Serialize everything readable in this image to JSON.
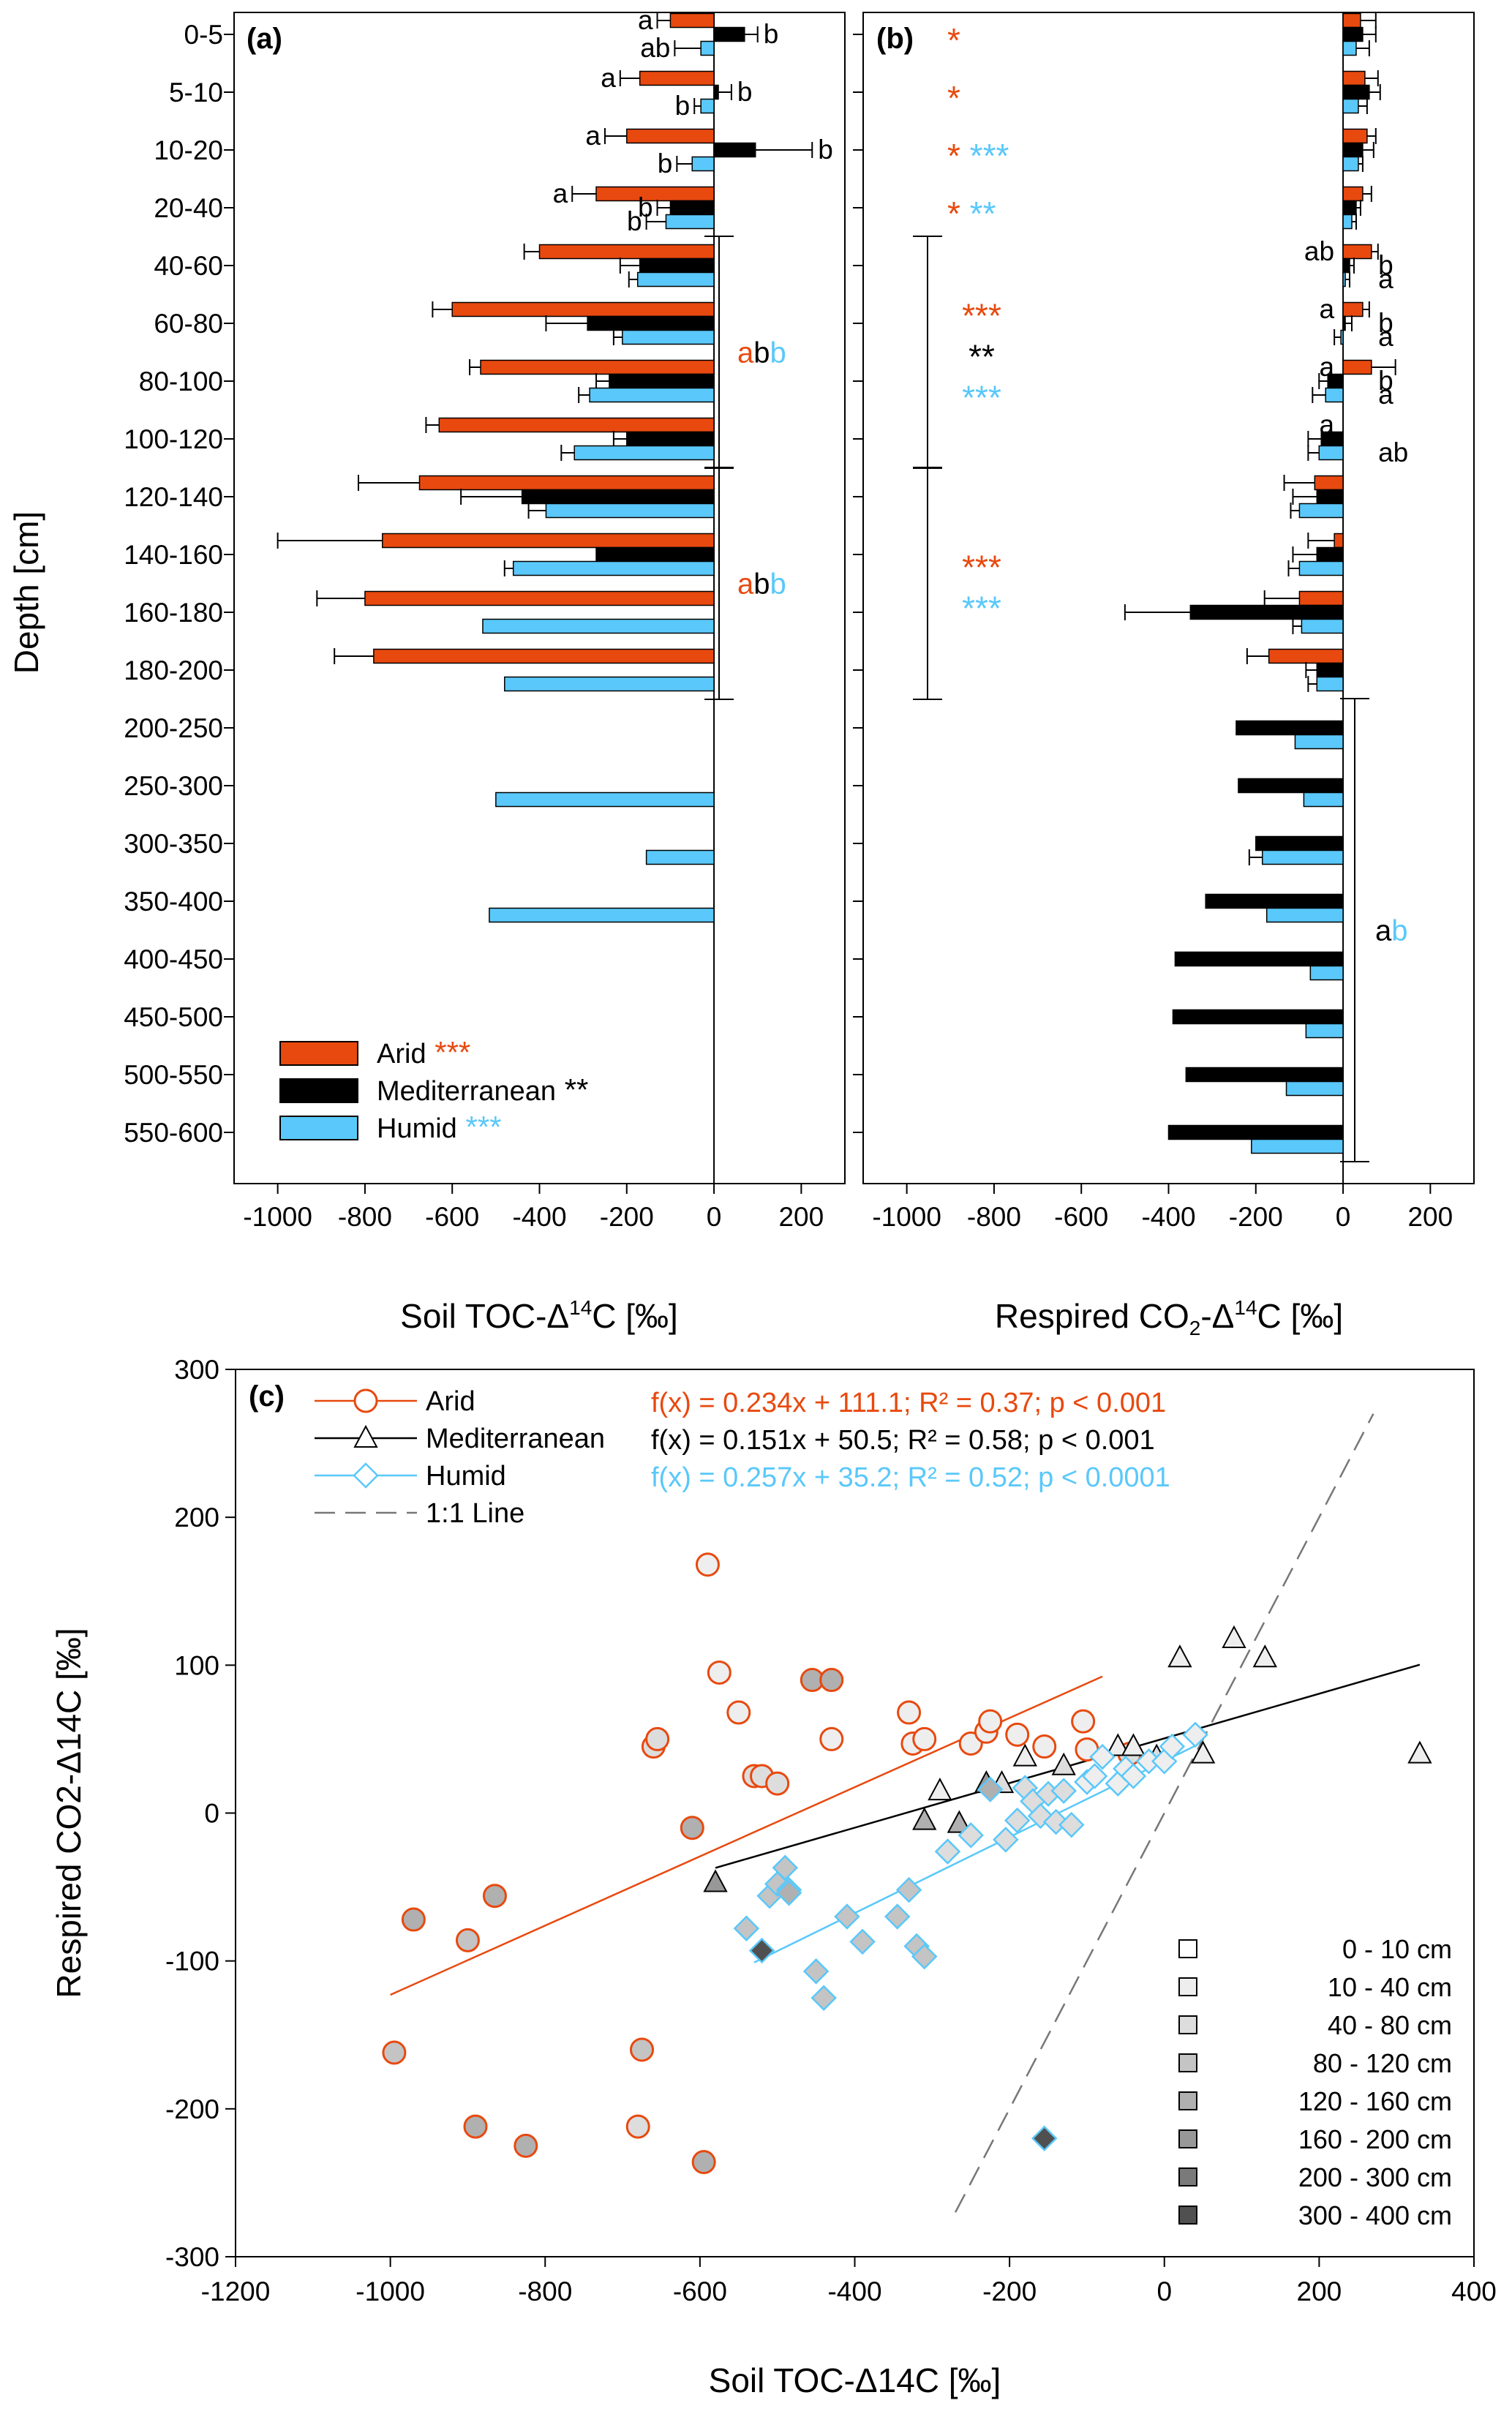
{
  "colors": {
    "arid": "#e8490f",
    "mediterranean": "#000000",
    "humid": "#5ac8fa",
    "axis": "#000000",
    "refline": "#777777"
  },
  "panel_a": {
    "tag": "(a)",
    "xlabel_main": "Soil TOC-Δ",
    "xlabel_sup": "14",
    "xlabel_end": "C [‰]",
    "ylabel": "Depth [cm]",
    "legend": [
      {
        "name": "Arid",
        "sig": "***",
        "color": "#e8490f"
      },
      {
        "name": "Mediterranean",
        "sig": "**",
        "color": "#000000"
      },
      {
        "name": "Humid",
        "sig": "***",
        "color": "#5ac8fa"
      }
    ],
    "letters": [
      {
        "row": 0,
        "text": "a",
        "series": "arid"
      },
      {
        "row": 0,
        "text": "b",
        "series": "mediterranean"
      },
      {
        "row": 0,
        "text": "ab",
        "series": "humid"
      },
      {
        "row": 1,
        "text": "a",
        "series": "arid"
      },
      {
        "row": 1,
        "text": "b",
        "series": "mediterranean"
      },
      {
        "row": 1,
        "text": "b",
        "series": "humid"
      },
      {
        "row": 2,
        "text": "a",
        "series": "arid"
      },
      {
        "row": 2,
        "text": "b",
        "series": "mediterranean"
      },
      {
        "row": 2,
        "text": "b",
        "series": "humid"
      },
      {
        "row": 3,
        "text": "a",
        "series": "arid"
      },
      {
        "row": 3,
        "text": "b",
        "series": "mediterranean"
      },
      {
        "row": 3,
        "text": "b",
        "series": "humid"
      }
    ],
    "groups": [
      {
        "from_row": 4,
        "to_row": 7,
        "letters": [
          {
            "t": "a",
            "c": "#e8490f"
          },
          {
            "t": "b",
            "c": "#000000"
          },
          {
            "t": "b",
            "c": "#5ac8fa"
          }
        ]
      },
      {
        "from_row": 8,
        "to_row": 11,
        "letters": [
          {
            "t": "a",
            "c": "#e8490f"
          },
          {
            "t": "b",
            "c": "#000000"
          },
          {
            "t": "b",
            "c": "#5ac8fa"
          }
        ]
      }
    ]
  },
  "panel_b": {
    "tag": "(b)",
    "xlabel_main": "Respired CO",
    "xlabel_sub": "2",
    "xlabel_mid": "-Δ",
    "xlabel_sup": "14",
    "xlabel_end": "C [‰]",
    "stars": [
      {
        "row": 0,
        "items": [
          {
            "t": "*",
            "c": "#e8490f"
          }
        ]
      },
      {
        "row": 1,
        "items": [
          {
            "t": "*",
            "c": "#e8490f"
          }
        ]
      },
      {
        "row": 2,
        "items": [
          {
            "t": "*",
            "c": "#e8490f"
          },
          {
            "t": "***",
            "c": "#5ac8fa"
          }
        ]
      },
      {
        "row": 3,
        "items": [
          {
            "t": "*",
            "c": "#e8490f"
          },
          {
            "t": "**",
            "c": "#5ac8fa"
          }
        ]
      }
    ],
    "group_stars": [
      {
        "from_row": 4,
        "to_row": 7,
        "lines": [
          {
            "t": "***",
            "c": "#e8490f"
          },
          {
            "t": "**",
            "c": "#000000"
          },
          {
            "t": "***",
            "c": "#5ac8fa"
          }
        ]
      },
      {
        "from_row": 8,
        "to_row": 11,
        "lines": [
          {
            "t": "***",
            "c": "#e8490f"
          },
          {
            "t": "***",
            "c": "#5ac8fa"
          }
        ]
      }
    ],
    "letters": [
      {
        "row": 4,
        "text": "ab",
        "series": "arid",
        "side": "left"
      },
      {
        "row": 4,
        "text": "b",
        "series": "mediterranean",
        "side": "right"
      },
      {
        "row": 4,
        "text": "a",
        "series": "humid",
        "side": "right"
      },
      {
        "row": 5,
        "text": "a",
        "series": "arid",
        "side": "left"
      },
      {
        "row": 5,
        "text": "b",
        "series": "mediterranean",
        "side": "right"
      },
      {
        "row": 5,
        "text": "a",
        "series": "humid",
        "side": "right"
      },
      {
        "row": 6,
        "text": "a",
        "series": "arid",
        "side": "left"
      },
      {
        "row": 6,
        "text": "b",
        "series": "mediterranean",
        "side": "right"
      },
      {
        "row": 6,
        "text": "a",
        "series": "humid",
        "side": "right"
      },
      {
        "row": 7,
        "text": "a",
        "series": "arid",
        "side": "left"
      },
      {
        "row": 7,
        "text": "ab",
        "series": "humid",
        "side": "right"
      }
    ],
    "group": {
      "from_row": 12,
      "to_row": 19,
      "letters": [
        {
          "t": "a",
          "c": "#000000"
        },
        {
          "t": "b",
          "c": "#5ac8fa"
        }
      ]
    }
  },
  "panel_c": {
    "tag": "(c)",
    "xlabel": "Soil TOC-Δ14C [‰]",
    "ylabel": "Respired CO2-Δ14C [‰]",
    "equations": [
      {
        "text": "f(x) = 0.234x + 111.1; R² = 0.37; p < 0.001",
        "color": "#e8490f"
      },
      {
        "text": "f(x) = 0.151x + 50.5;   R² = 0.58; p < 0.001",
        "color": "#000000"
      },
      {
        "text": "f(x) = 0.257x + 35.2;   R² = 0.52; p < 0.0001",
        "color": "#5ac8fa"
      }
    ],
    "legend": [
      {
        "name": "Arid",
        "marker": "circle",
        "color": "#e8490f"
      },
      {
        "name": "Mediterranean",
        "marker": "triangle",
        "color": "#000000"
      },
      {
        "name": "Humid",
        "marker": "diamond",
        "color": "#5ac8fa"
      },
      {
        "name": "1:1 Line",
        "marker": "dash",
        "color": "#777777"
      }
    ],
    "depth_legend": [
      {
        "label": "0 -   10 cm",
        "fill": "#ffffff"
      },
      {
        "label": "10 -   40 cm",
        "fill": "#eeeeee"
      },
      {
        "label": "40 -   80 cm",
        "fill": "#dddddd"
      },
      {
        "label": "80 - 120 cm",
        "fill": "#c4c4c4"
      },
      {
        "label": "120 - 160 cm",
        "fill": "#b0b0b0"
      },
      {
        "label": "160 - 200 cm",
        "fill": "#989898"
      },
      {
        "label": "200 - 300 cm",
        "fill": "#7a7a7a"
      },
      {
        "label": "300 - 400 cm",
        "fill": "#505050"
      }
    ]
  },
  "chart_data": [
    {
      "type": "bar",
      "orientation": "horizontal",
      "categories": [
        "0-5",
        "5-10",
        "10-20",
        "20-40",
        "40-60",
        "60-80",
        "80-100",
        "100-120",
        "120-140",
        "140-160",
        "160-180",
        "180-200",
        "200-250",
        "250-300",
        "300-350",
        "350-400",
        "400-450",
        "450-500",
        "500-550",
        "550-600"
      ],
      "xlabel": "Soil TOC-Δ14C [‰]",
      "ylabel": "Depth [cm]",
      "xlim": [
        -1100,
        300
      ],
      "xticks": [
        -1000,
        -800,
        -600,
        -400,
        -200,
        0,
        200
      ],
      "series": [
        {
          "name": "Arid",
          "values": [
            -100,
            -170,
            -200,
            -270,
            -400,
            -600,
            -535,
            -630,
            -675,
            -760,
            -800,
            -780,
            null,
            null,
            null,
            null,
            null,
            null,
            null,
            null
          ],
          "errors": [
            30,
            45,
            50,
            55,
            35,
            45,
            25,
            30,
            140,
            240,
            110,
            90,
            null,
            null,
            null,
            null,
            null,
            null,
            null,
            null
          ]
        },
        {
          "name": "Mediterranean",
          "values": [
            70,
            10,
            95,
            -100,
            -170,
            -290,
            -240,
            -200,
            -440,
            -270,
            null,
            null,
            null,
            null,
            null,
            null,
            null,
            null,
            null,
            null
          ],
          "errors": [
            30,
            30,
            130,
            30,
            45,
            95,
            30,
            30,
            140,
            0,
            null,
            null,
            null,
            null,
            null,
            null,
            null,
            null,
            null,
            null
          ]
        },
        {
          "name": "Humid",
          "values": [
            -30,
            -30,
            -50,
            -110,
            -175,
            -210,
            -285,
            -320,
            -385,
            -460,
            -530,
            -480,
            null,
            -500,
            -155,
            -515,
            null,
            null,
            null,
            null
          ],
          "errors": [
            60,
            15,
            35,
            45,
            20,
            20,
            25,
            30,
            40,
            20,
            0,
            0,
            null,
            0,
            0,
            0,
            null,
            null,
            null,
            null
          ]
        }
      ]
    },
    {
      "type": "bar",
      "orientation": "horizontal",
      "categories": [
        "0-5",
        "5-10",
        "10-20",
        "20-40",
        "40-60",
        "60-80",
        "80-100",
        "100-120",
        "120-140",
        "140-160",
        "160-180",
        "180-200",
        "200-250",
        "250-300",
        "300-350",
        "350-400",
        "400-450",
        "450-500",
        "500-550",
        "550-600"
      ],
      "xlabel": "Respired CO2-Δ14C [‰]",
      "xlim": [
        -1100,
        300
      ],
      "xticks": [
        -1000,
        -800,
        -600,
        -400,
        -200,
        0,
        200
      ],
      "series": [
        {
          "name": "Arid",
          "values": [
            40,
            50,
            55,
            45,
            65,
            45,
            65,
            0,
            -65,
            -20,
            -100,
            -170,
            null,
            null,
            null,
            null,
            null,
            null,
            null,
            null
          ],
          "errors": [
            35,
            30,
            20,
            20,
            15,
            15,
            55,
            0,
            70,
            60,
            80,
            50,
            null,
            null,
            null,
            null,
            null,
            null,
            null,
            null
          ]
        },
        {
          "name": "Mediterranean",
          "values": [
            45,
            60,
            45,
            30,
            15,
            5,
            -35,
            -50,
            -60,
            -60,
            -350,
            -60,
            -245,
            -240,
            -200,
            -315,
            -385,
            -390,
            -360,
            -400
          ],
          "errors": [
            30,
            25,
            25,
            10,
            10,
            15,
            20,
            30,
            55,
            55,
            150,
            25,
            0,
            0,
            0,
            0,
            0,
            0,
            0,
            0
          ]
        },
        {
          "name": "Humid",
          "values": [
            30,
            35,
            35,
            20,
            5,
            -5,
            -40,
            -55,
            -100,
            -100,
            -95,
            -60,
            -110,
            -90,
            -185,
            -175,
            -75,
            -85,
            -130,
            -210
          ],
          "errors": [
            30,
            20,
            10,
            10,
            10,
            15,
            30,
            25,
            20,
            25,
            20,
            20,
            0,
            0,
            30,
            0,
            0,
            0,
            0,
            0
          ]
        }
      ]
    },
    {
      "type": "scatter",
      "xlabel": "Soil TOC-Δ14C [‰]",
      "ylabel": "Respired CO2-Δ14C [‰]",
      "xlim": [
        -1200,
        400
      ],
      "ylim": [
        -300,
        300
      ],
      "xticks": [
        -1200,
        -1000,
        -800,
        -600,
        -400,
        -200,
        0,
        200,
        400
      ],
      "yticks": [
        -300,
        -200,
        -100,
        0,
        100,
        200,
        300
      ],
      "series": [
        {
          "name": "Arid",
          "marker": "circle",
          "x": [
            -590,
            -575,
            -550,
            -530,
            -520,
            -500,
            -455,
            -430,
            -430,
            -330,
            -325,
            -310,
            -250,
            -230,
            -225,
            -190,
            -155,
            -105,
            -100,
            -45,
            -660,
            -655,
            -610,
            -970,
            -900,
            -865,
            -995,
            -890,
            -825,
            -680,
            -675,
            -595
          ],
          "y": [
            168,
            95,
            68,
            25,
            25,
            20,
            90,
            90,
            50,
            68,
            47,
            50,
            47,
            55,
            62,
            53,
            45,
            62,
            43,
            40,
            45,
            50,
            -10,
            -72,
            -86,
            -56,
            -162,
            -212,
            -225,
            -212,
            -160,
            -236
          ],
          "shade": [
            1,
            1,
            1,
            2,
            2,
            2,
            4,
            4,
            1,
            1,
            1,
            1,
            1,
            1,
            1,
            1,
            1,
            1,
            1,
            2,
            2,
            2,
            4,
            4,
            3,
            4,
            3,
            4,
            4,
            2,
            3,
            4
          ]
        },
        {
          "name": "Mediterranean",
          "marker": "triangle",
          "x": [
            -580,
            -310,
            -290,
            -265,
            -230,
            -210,
            -180,
            -130,
            -60,
            -40,
            -10,
            20,
            90,
            130,
            330,
            50
          ],
          "y": [
            -47,
            -5,
            15,
            -7,
            20,
            20,
            38,
            32,
            45,
            45,
            38,
            105,
            118,
            105,
            40,
            40
          ],
          "shade": [
            5,
            4,
            1,
            4,
            5,
            2,
            1,
            2,
            1,
            1,
            2,
            1,
            1,
            1,
            1,
            1
          ]
        },
        {
          "name": "Humid",
          "marker": "diamond",
          "x": [
            -540,
            -510,
            -500,
            -490,
            -485,
            -450,
            -440,
            -410,
            -390,
            -345,
            -330,
            -320,
            -310,
            -280,
            -250,
            -225,
            -205,
            -190,
            -180,
            -170,
            -160,
            -150,
            -140,
            -130,
            -120,
            -100,
            -90,
            -80,
            -60,
            -50,
            -40,
            -20,
            0,
            10,
            40,
            -155,
            -520,
            -485
          ],
          "y": [
            -78,
            -56,
            -48,
            -37,
            -52,
            -107,
            -125,
            -70,
            -87,
            -70,
            -52,
            -90,
            -97,
            -26,
            -15,
            16,
            -18,
            -5,
            17,
            8,
            -2,
            13,
            -6,
            15,
            -8,
            21,
            25,
            38,
            20,
            30,
            25,
            35,
            35,
            45,
            53,
            -220,
            -93,
            -54
          ],
          "shade": [
            3,
            3,
            3,
            3,
            3,
            3,
            3,
            3,
            3,
            3,
            3,
            3,
            3,
            2,
            2,
            4,
            2,
            2,
            2,
            2,
            2,
            2,
            2,
            2,
            2,
            1,
            1,
            1,
            1,
            1,
            1,
            1,
            1,
            1,
            1,
            7,
            7,
            4
          ]
        }
      ],
      "fits": [
        {
          "name": "Arid",
          "slope": 0.234,
          "intercept": 111.1,
          "x_range": [
            -1000,
            -80
          ]
        },
        {
          "name": "Mediterranean",
          "slope": 0.151,
          "intercept": 50.5,
          "x_range": [
            -580,
            330
          ]
        },
        {
          "name": "Humid",
          "slope": 0.257,
          "intercept": 35.2,
          "x_range": [
            -530,
            40
          ]
        },
        {
          "name": "1:1 Line",
          "slope": 1,
          "intercept": 0,
          "x_range": [
            -270,
            270
          ]
        }
      ]
    }
  ]
}
